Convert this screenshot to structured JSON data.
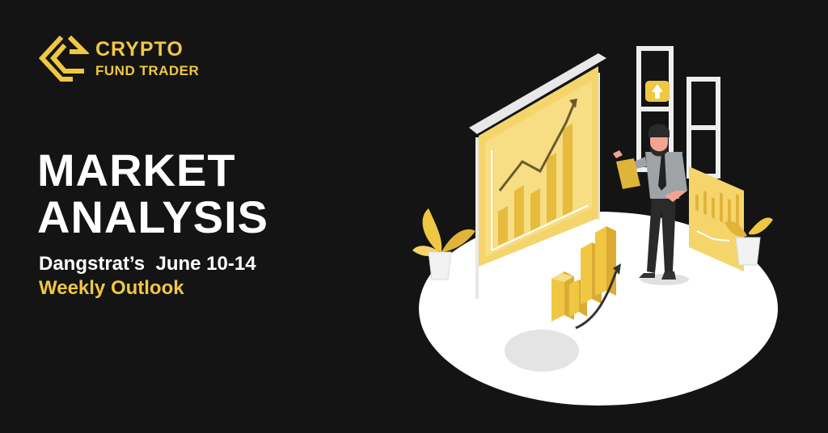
{
  "brand": {
    "name_line1": "CRYPTO",
    "name_line2": "FUND TRADER",
    "logo_icon": "crypto-fund-trader-logo-icon",
    "accent_color": "#f0c743"
  },
  "headline": {
    "line1": "MARKET",
    "line2": "ANALYSIS"
  },
  "subtitle": {
    "line1": "Dangstrat’s  June 10-14",
    "line2": "Weekly Outlook"
  },
  "illustration": {
    "icon": "market-analysis-presenter-illustration",
    "background_color": "#141414"
  }
}
